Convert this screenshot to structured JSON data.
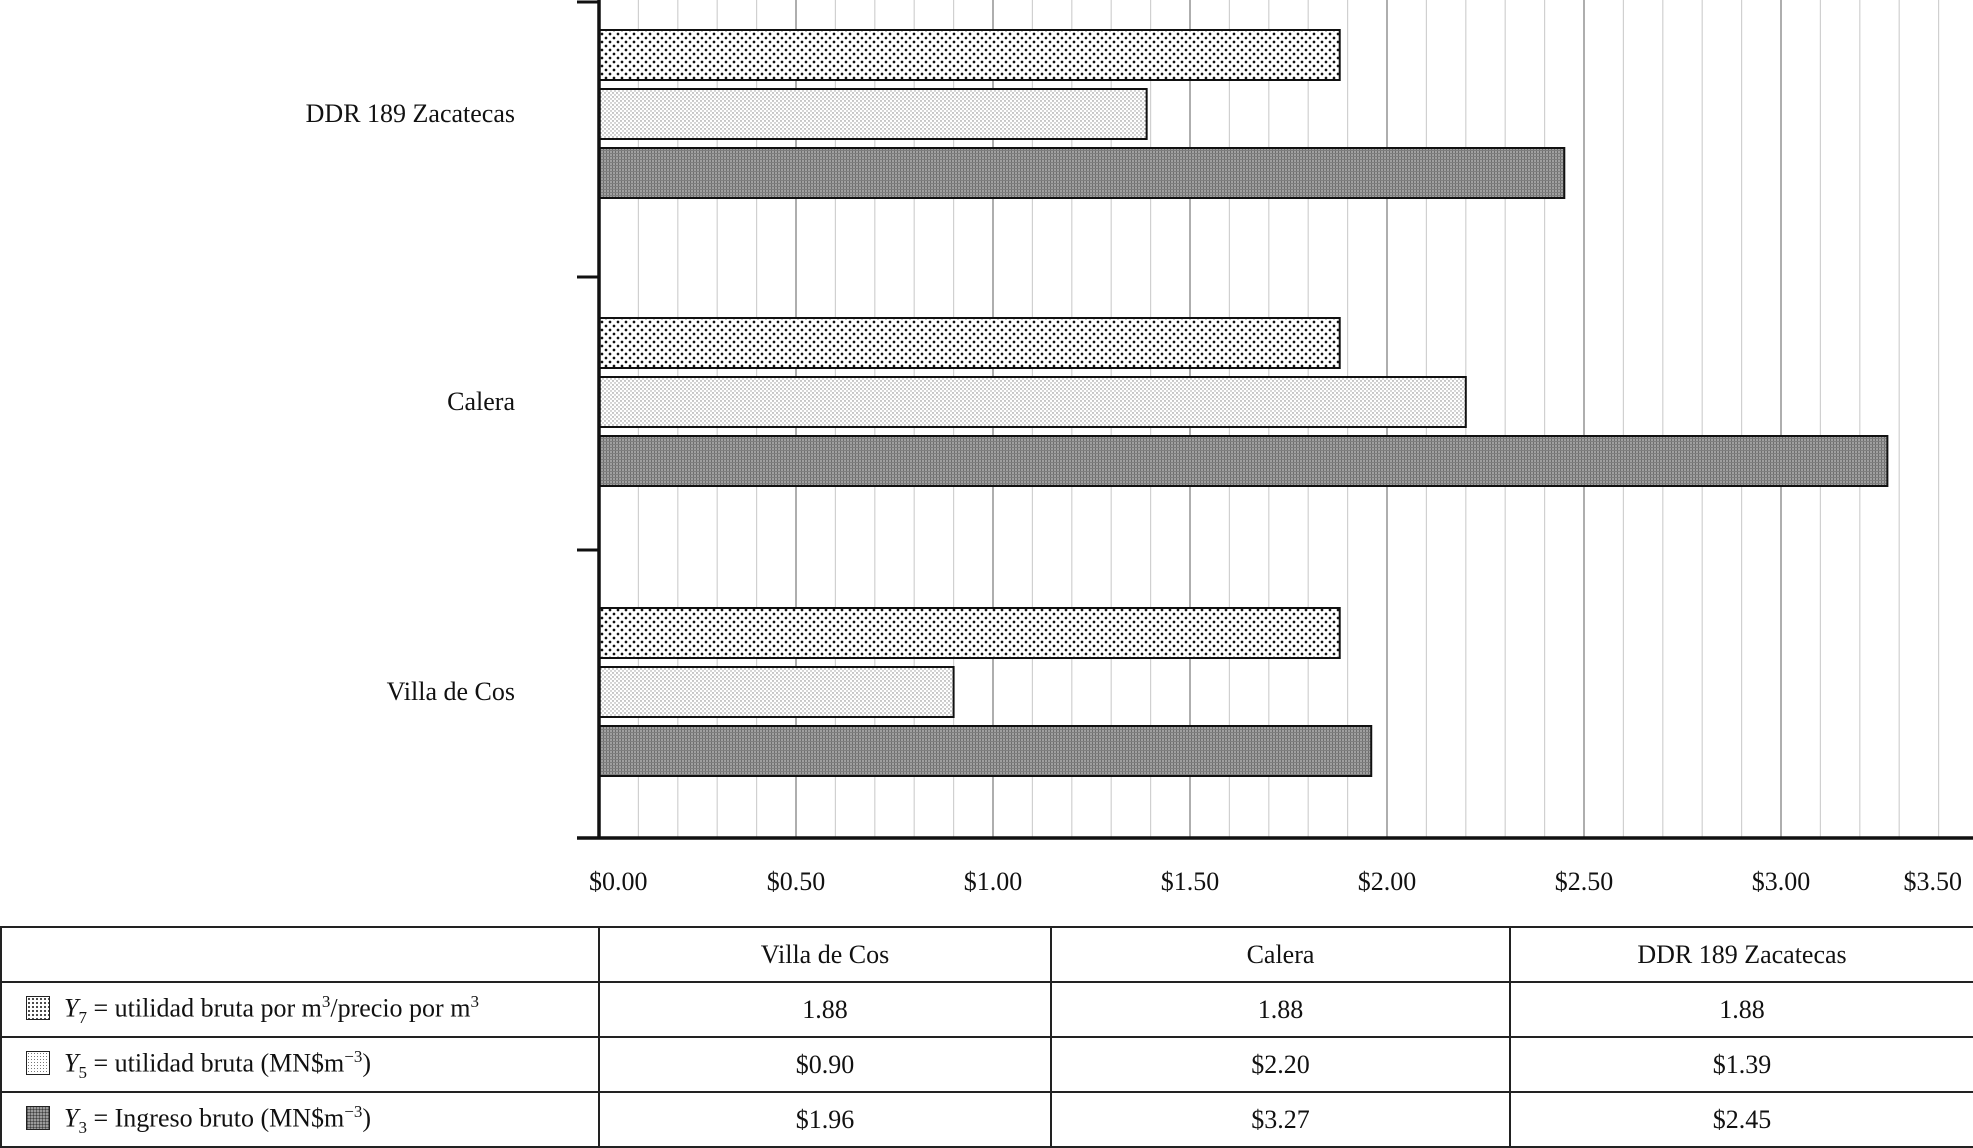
{
  "chart_data": {
    "type": "bar",
    "orientation": "horizontal",
    "categories": [
      "Villa de Cos",
      "Calera",
      "DDR 189 Zacatecas"
    ],
    "series": [
      {
        "name": "Y7 = utilidad bruta por m3/precio por m3",
        "values": [
          1.88,
          1.88,
          1.88
        ],
        "display": [
          "1.88",
          "1.88",
          "1.88"
        ],
        "pattern": "dense-dots"
      },
      {
        "name": "Y5 = utilidad bruta (MN$m−3)",
        "values": [
          0.9,
          2.2,
          1.39
        ],
        "display": [
          "$0.90",
          "$2.20",
          "$1.39"
        ],
        "pattern": "fine-dots"
      },
      {
        "name": "Y3 = Ingreso bruto (MN$m−3)",
        "values": [
          1.96,
          3.27,
          2.45
        ],
        "display": [
          "$1.96",
          "$3.27",
          "$2.45"
        ],
        "pattern": "gray-grid"
      }
    ],
    "xlim": [
      0,
      3.5
    ],
    "x_ticks": [
      "$0.00",
      "$0.50",
      "$1.00",
      "$1.50",
      "$2.00",
      "$2.50",
      "$3.00",
      "$3.50"
    ],
    "grid": "vertical major and minor",
    "legend": "data table below chart",
    "xlabel": "",
    "ylabel": ""
  },
  "table": {
    "header": [
      "",
      "Villa de Cos",
      "Calera",
      "DDR 189 Zacatecas"
    ],
    "rows": [
      {
        "symbol": "Y",
        "sub": "7",
        "text": " = utilidad bruta por m",
        "sup1": "3",
        "text2": "/precio por m",
        "sup2": "3",
        "text3": ""
      },
      {
        "symbol": "Y",
        "sub": "5",
        "text": " = utilidad bruta (MN$m",
        "sup1": "−3",
        "text2": ")",
        "sup2": "",
        "text3": ""
      },
      {
        "symbol": "Y",
        "sub": "3",
        "text": " = Ingreso bruto (MN$m",
        "sup1": "−3",
        "text2": ")",
        "sup2": "",
        "text3": ""
      }
    ]
  },
  "colors": {
    "bar_y3": "#9a9a9a",
    "bar_y5": "#ffffff",
    "bar_y7": "#ffffff",
    "axis": "#111111",
    "grid_major": "#9a9a9a",
    "grid_minor": "#d0d0d0"
  }
}
